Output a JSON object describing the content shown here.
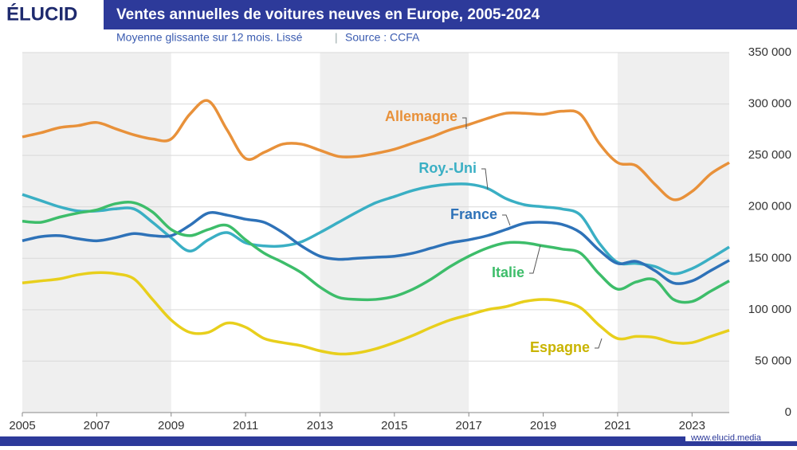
{
  "brand": "ÉLUCID",
  "footer": "www.elucid.media",
  "chart_data": {
    "type": "line",
    "title": "Ventes annuelles de voitures neuves en Europe, 2005-2024",
    "subtitle": "Moyenne glissante sur 12 mois. Lissé",
    "source": "Source : CCFA",
    "x": [
      2005,
      2005.5,
      2006,
      2006.5,
      2007,
      2007.5,
      2008,
      2008.5,
      2009,
      2009.5,
      2010,
      2010.5,
      2011,
      2011.5,
      2012,
      2012.5,
      2013,
      2013.5,
      2014,
      2014.5,
      2015,
      2015.5,
      2016,
      2016.5,
      2017,
      2017.5,
      2018,
      2018.5,
      2019,
      2019.5,
      2020,
      2020.5,
      2021,
      2021.5,
      2022,
      2022.5,
      2023,
      2023.5,
      2024
    ],
    "series": [
      {
        "name": "Allemagne",
        "color": "#e8913a",
        "values": [
          268000,
          272000,
          277000,
          279000,
          282000,
          276000,
          270000,
          266000,
          266000,
          290000,
          303000,
          275000,
          247000,
          253000,
          261000,
          261000,
          255000,
          249000,
          249000,
          252000,
          256000,
          262000,
          268000,
          275000,
          280000,
          286000,
          291000,
          291000,
          290000,
          293000,
          290000,
          262000,
          243000,
          240000,
          222000,
          207000,
          215000,
          232000,
          243000
        ]
      },
      {
        "name": "Roy.-Uni",
        "color": "#3aafc4",
        "values": [
          212000,
          206000,
          200000,
          196000,
          196000,
          198000,
          198000,
          185000,
          170000,
          157000,
          168000,
          175000,
          165000,
          162000,
          162000,
          166000,
          175000,
          185000,
          195000,
          204000,
          210000,
          216000,
          220000,
          222000,
          222000,
          218000,
          208000,
          202000,
          200000,
          198000,
          192000,
          165000,
          146000,
          145000,
          142000,
          135000,
          140000,
          150000,
          161000
        ]
      },
      {
        "name": "France",
        "color": "#2e72b8",
        "values": [
          167000,
          171000,
          172000,
          169000,
          167000,
          170000,
          174000,
          172000,
          172000,
          182000,
          194000,
          192000,
          188000,
          185000,
          175000,
          162000,
          152000,
          149000,
          150000,
          151000,
          152000,
          155000,
          160000,
          165000,
          168000,
          172000,
          178000,
          184000,
          185000,
          183000,
          175000,
          158000,
          145000,
          147000,
          138000,
          126000,
          128000,
          138000,
          148000
        ]
      },
      {
        "name": "Italie",
        "color": "#3dbd6a",
        "values": [
          186000,
          185000,
          190000,
          194000,
          197000,
          203000,
          204000,
          195000,
          178000,
          172000,
          178000,
          182000,
          168000,
          155000,
          146000,
          136000,
          122000,
          112000,
          110000,
          110000,
          113000,
          120000,
          130000,
          142000,
          152000,
          160000,
          165000,
          165000,
          162000,
          159000,
          155000,
          135000,
          120000,
          127000,
          129000,
          110000,
          108000,
          118000,
          128000
        ]
      },
      {
        "name": "Espagne",
        "color": "#e8cf1c",
        "values": [
          126000,
          128000,
          130000,
          134000,
          136000,
          135000,
          130000,
          110000,
          90000,
          78000,
          78000,
          87000,
          83000,
          72000,
          68000,
          65000,
          60000,
          57000,
          58000,
          62000,
          68000,
          75000,
          83000,
          90000,
          95000,
          100000,
          103000,
          108000,
          110000,
          108000,
          102000,
          85000,
          72000,
          74000,
          73000,
          68000,
          68000,
          74000,
          80000
        ]
      }
    ],
    "xlim": [
      2005,
      2024
    ],
    "xticks": [
      2005,
      2007,
      2009,
      2011,
      2013,
      2015,
      2017,
      2019,
      2021,
      2023
    ],
    "ylim": [
      0,
      350000
    ],
    "yticks": [
      0,
      {
        "value": 50000,
        "label": "50 000"
      },
      {
        "value": 100000,
        "label": "100 000"
      },
      {
        "value": 150000,
        "label": "150 000"
      },
      {
        "value": 200000,
        "label": "200 000"
      },
      {
        "value": 250000,
        "label": "250 000"
      },
      {
        "value": 300000,
        "label": "300 000"
      },
      {
        "value": 350000,
        "label": "350 000"
      }
    ],
    "grid": true
  }
}
